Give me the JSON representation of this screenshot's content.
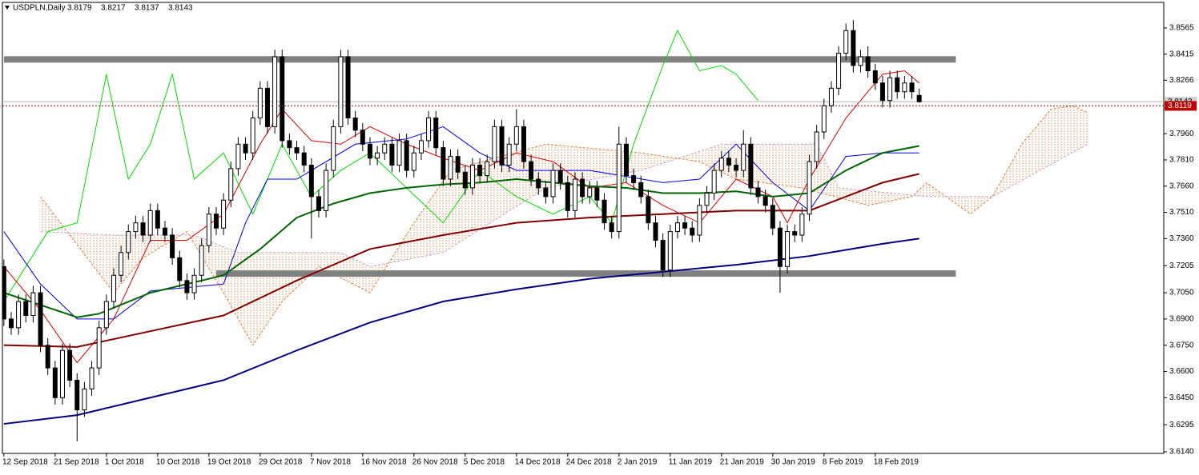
{
  "chart_data": {
    "type": "candlestick",
    "title": "USDPLN,Daily",
    "ylim": [
      3.6131,
      3.8711
    ],
    "xlim": [
      -0.2,
      158.4
    ],
    "yticks": [
      3.8565,
      3.8415,
      3.8266,
      {
        "value": 3.796,
        "label": "3.7960"
      },
      {
        "value": 3.781,
        "label": "3.7810"
      },
      {
        "value": 3.766,
        "label": "3.7660"
      },
      {
        "value": 3.751,
        "label": "3.7510"
      },
      {
        "value": 3.736,
        "label": "3.7360"
      },
      3.7205,
      {
        "value": 3.705,
        "label": "3.7050"
      },
      {
        "value": 3.69,
        "label": "3.6900"
      },
      {
        "value": 3.675,
        "label": "3.6750"
      },
      {
        "value": 3.66,
        "label": "3.6600"
      },
      {
        "value": 3.645,
        "label": "3.6450"
      },
      3.6295,
      {
        "value": 3.614,
        "label": "3.6140"
      }
    ],
    "xticks": [
      {
        "value": 0,
        "label": "12 Sep 2018"
      },
      {
        "value": 7,
        "label": "21 Sep 2018"
      },
      {
        "value": 14,
        "label": "1 Oct 2018"
      },
      {
        "value": 21,
        "label": "10 Oct 2018"
      },
      {
        "value": 28,
        "label": "19 Oct 2018"
      },
      {
        "value": 35,
        "label": "29 Oct 2018"
      },
      {
        "value": 42,
        "label": "7 Nov 2018"
      },
      {
        "value": 49,
        "label": "16 Nov 2018"
      },
      {
        "value": 56,
        "label": "26 Nov 2018"
      },
      {
        "value": 63,
        "label": "5 Dec 2018"
      },
      {
        "value": 70,
        "label": "14 Dec 2018"
      },
      {
        "value": 77,
        "label": "24 Dec 2018"
      },
      {
        "value": 84,
        "label": "2 Jan 2019"
      },
      {
        "value": 91,
        "label": "11 Jan 2019"
      },
      {
        "value": 98,
        "label": "21 Jan 2019"
      },
      {
        "value": 105,
        "label": "30 Jan 2019"
      },
      {
        "value": 112,
        "label": "8 Feb 2019"
      },
      {
        "value": 119,
        "label": "18 Feb 2019"
      }
    ],
    "ohlc": [
      [
        3.72,
        3.724,
        3.686,
        3.69
      ],
      [
        3.69,
        3.694,
        3.681,
        3.685
      ],
      [
        3.685,
        3.704,
        3.681,
        3.7
      ],
      [
        3.7,
        3.704,
        3.688,
        3.692
      ],
      [
        3.692,
        3.709,
        3.688,
        3.705
      ],
      [
        3.705,
        3.709,
        3.671,
        3.675
      ],
      [
        3.675,
        3.679,
        3.658,
        3.662
      ],
      [
        3.662,
        3.666,
        3.641,
        3.645
      ],
      [
        3.645,
        3.676,
        3.641,
        3.672
      ],
      [
        3.672,
        3.676,
        3.651,
        3.655
      ],
      [
        3.655,
        3.659,
        3.62,
        3.638
      ],
      [
        3.638,
        3.654,
        3.634,
        3.65
      ],
      [
        3.65,
        3.666,
        3.646,
        3.662
      ],
      [
        3.662,
        3.689,
        3.658,
        3.685
      ],
      [
        3.685,
        3.704,
        3.681,
        3.7
      ],
      [
        3.7,
        3.719,
        3.696,
        3.715
      ],
      [
        3.715,
        3.732,
        3.711,
        3.728
      ],
      [
        3.728,
        3.744,
        3.724,
        3.74
      ],
      [
        3.74,
        3.749,
        3.736,
        3.745
      ],
      [
        3.745,
        3.749,
        3.734,
        3.738
      ],
      [
        3.738,
        3.756,
        3.734,
        3.752
      ],
      [
        3.752,
        3.756,
        3.738,
        3.742
      ],
      [
        3.742,
        3.746,
        3.734,
        3.738
      ],
      [
        3.738,
        3.742,
        3.721,
        3.725
      ],
      [
        3.725,
        3.729,
        3.708,
        3.712
      ],
      [
        3.712,
        3.716,
        3.701,
        3.705
      ],
      [
        3.705,
        3.719,
        3.701,
        3.715
      ],
      [
        3.715,
        3.736,
        3.711,
        3.732
      ],
      [
        3.732,
        3.754,
        3.728,
        3.75
      ],
      [
        3.75,
        3.754,
        3.738,
        3.742
      ],
      [
        3.742,
        3.762,
        3.738,
        3.758
      ],
      [
        3.758,
        3.78,
        3.754,
        3.776
      ],
      [
        3.776,
        3.794,
        3.772,
        3.79
      ],
      [
        3.79,
        3.794,
        3.781,
        3.785
      ],
      [
        3.785,
        3.809,
        3.781,
        3.805
      ],
      [
        3.805,
        3.826,
        3.801,
        3.822
      ],
      [
        3.822,
        3.826,
        3.796,
        3.8
      ],
      [
        3.8,
        3.844,
        3.796,
        3.84
      ],
      [
        3.84,
        3.844,
        3.788,
        3.792
      ],
      [
        3.792,
        3.796,
        3.784,
        3.788
      ],
      [
        3.788,
        3.792,
        3.781,
        3.785
      ],
      [
        3.785,
        3.789,
        3.774,
        3.778
      ],
      [
        3.778,
        3.782,
        3.736,
        3.76
      ],
      [
        3.76,
        3.764,
        3.748,
        3.752
      ],
      [
        3.752,
        3.779,
        3.748,
        3.775
      ],
      [
        3.775,
        3.804,
        3.771,
        3.8
      ],
      [
        3.8,
        3.844,
        3.796,
        3.84
      ],
      [
        3.84,
        3.844,
        3.801,
        3.805
      ],
      [
        3.805,
        3.809,
        3.794,
        3.798
      ],
      [
        3.798,
        3.802,
        3.786,
        3.79
      ],
      [
        3.79,
        3.794,
        3.778,
        3.782
      ],
      [
        3.782,
        3.789,
        3.778,
        3.785
      ],
      [
        3.785,
        3.794,
        3.781,
        3.79
      ],
      [
        3.79,
        3.794,
        3.774,
        3.778
      ],
      [
        3.778,
        3.796,
        3.774,
        3.792
      ],
      [
        3.792,
        3.796,
        3.771,
        3.775
      ],
      [
        3.775,
        3.789,
        3.771,
        3.785
      ],
      [
        3.785,
        3.796,
        3.781,
        3.792
      ],
      [
        3.792,
        3.809,
        3.788,
        3.805
      ],
      [
        3.805,
        3.809,
        3.784,
        3.788
      ],
      [
        3.788,
        3.792,
        3.766,
        3.77
      ],
      [
        3.77,
        3.787,
        3.766,
        3.783
      ],
      [
        3.783,
        3.787,
        3.77,
        3.774
      ],
      [
        3.774,
        3.778,
        3.761,
        3.765
      ],
      [
        3.765,
        3.782,
        3.761,
        3.778
      ],
      [
        3.778,
        3.782,
        3.768,
        3.772
      ],
      [
        3.772,
        3.784,
        3.768,
        3.78
      ],
      [
        3.78,
        3.804,
        3.776,
        3.8
      ],
      [
        3.8,
        3.804,
        3.774,
        3.778
      ],
      [
        3.778,
        3.794,
        3.774,
        3.79
      ],
      [
        3.79,
        3.81,
        3.786,
        3.8
      ],
      [
        3.8,
        3.804,
        3.776,
        3.78
      ],
      [
        3.78,
        3.784,
        3.766,
        3.77
      ],
      [
        3.77,
        3.774,
        3.761,
        3.765
      ],
      [
        3.765,
        3.769,
        3.756,
        3.76
      ],
      [
        3.76,
        3.779,
        3.756,
        3.775
      ],
      [
        3.775,
        3.779,
        3.764,
        3.768
      ],
      [
        3.768,
        3.772,
        3.748,
        3.752
      ],
      [
        3.752,
        3.774,
        3.748,
        3.77
      ],
      [
        3.77,
        3.774,
        3.756,
        3.76
      ],
      [
        3.76,
        3.769,
        3.756,
        3.765
      ],
      [
        3.765,
        3.769,
        3.754,
        3.758
      ],
      [
        3.758,
        3.762,
        3.741,
        3.745
      ],
      [
        3.745,
        3.749,
        3.736,
        3.74
      ],
      [
        3.74,
        3.8,
        3.736,
        3.79
      ],
      [
        3.79,
        3.794,
        3.768,
        3.772
      ],
      [
        3.772,
        3.776,
        3.764,
        3.768
      ],
      [
        3.768,
        3.772,
        3.756,
        3.76
      ],
      [
        3.76,
        3.764,
        3.741,
        3.745
      ],
      [
        3.745,
        3.749,
        3.731,
        3.735
      ],
      [
        3.735,
        3.739,
        3.714,
        3.718
      ],
      [
        3.718,
        3.744,
        3.714,
        3.74
      ],
      [
        3.74,
        3.749,
        3.736,
        3.745
      ],
      [
        3.745,
        3.749,
        3.738,
        3.742
      ],
      [
        3.742,
        3.746,
        3.734,
        3.738
      ],
      [
        3.738,
        3.759,
        3.734,
        3.755
      ],
      [
        3.755,
        3.766,
        3.751,
        3.762
      ],
      [
        3.762,
        3.779,
        3.758,
        3.775
      ],
      [
        3.775,
        3.786,
        3.771,
        3.782
      ],
      [
        3.782,
        3.786,
        3.774,
        3.778
      ],
      [
        3.778,
        3.782,
        3.771,
        3.775
      ],
      [
        3.775,
        3.798,
        3.771,
        3.79
      ],
      [
        3.79,
        3.794,
        3.761,
        3.765
      ],
      [
        3.765,
        3.769,
        3.756,
        3.76
      ],
      [
        3.76,
        3.764,
        3.751,
        3.755
      ],
      [
        3.755,
        3.759,
        3.738,
        3.742
      ],
      [
        3.742,
        3.746,
        3.705,
        3.72
      ],
      [
        3.72,
        3.744,
        3.716,
        3.74
      ],
      [
        3.74,
        3.744,
        3.734,
        3.738
      ],
      [
        3.738,
        3.754,
        3.734,
        3.75
      ],
      [
        3.75,
        3.784,
        3.746,
        3.78
      ],
      [
        3.78,
        3.801,
        3.776,
        3.797
      ],
      [
        3.797,
        3.816,
        3.793,
        3.812
      ],
      [
        3.812,
        3.826,
        3.808,
        3.822
      ],
      [
        3.822,
        3.846,
        3.818,
        3.842
      ],
      [
        3.842,
        3.859,
        3.838,
        3.855
      ],
      [
        3.855,
        3.861,
        3.831,
        3.835
      ],
      [
        3.835,
        3.844,
        3.831,
        3.84
      ],
      [
        3.84,
        3.846,
        3.828,
        3.832
      ],
      [
        3.832,
        3.836,
        3.821,
        3.825
      ],
      [
        3.825,
        3.829,
        3.811,
        3.815
      ],
      [
        3.815,
        3.832,
        3.811,
        3.828
      ],
      [
        3.828,
        3.832,
        3.816,
        3.82
      ],
      [
        3.82,
        3.829,
        3.816,
        3.825
      ],
      [
        3.825,
        3.829,
        3.816,
        3.82
      ],
      [
        3.8179,
        3.8217,
        3.8137,
        3.8143
      ]
    ],
    "bid": 3.8143,
    "ask": 3.8119,
    "bands": [
      {
        "y": 3.8385,
        "x": [
          0,
          130
        ]
      },
      {
        "y": 3.716,
        "x": [
          29,
          130
        ]
      }
    ],
    "cloud": {
      "span_a": {
        "color": "#e08040",
        "x": [
          5,
          15,
          19,
          25,
          30,
          34,
          38,
          43,
          50,
          56,
          61,
          74,
          87,
          95,
          100,
          109,
          118,
          124,
          126,
          132,
          135,
          139,
          143,
          146,
          148
        ],
        "values": [
          3.76,
          3.705,
          3.725,
          3.74,
          3.705,
          3.675,
          3.7,
          3.72,
          3.705,
          3.745,
          3.775,
          3.79,
          3.785,
          3.78,
          3.77,
          3.765,
          3.755,
          3.76,
          3.768,
          3.75,
          3.76,
          3.79,
          3.81,
          3.812,
          3.808
        ]
      },
      "span_b": {
        "color": "#c8a2c8",
        "x": [
          5,
          15,
          26,
          32,
          46,
          50,
          60,
          74,
          87,
          98,
          111,
          114,
          126,
          135,
          148
        ],
        "values": [
          3.74,
          3.738,
          3.738,
          3.728,
          3.728,
          3.72,
          3.728,
          3.765,
          3.775,
          3.79,
          3.79,
          3.765,
          3.76,
          3.76,
          3.79
        ]
      }
    },
    "series": [
      {
        "color": "#00e000",
        "x": [
          0,
          3,
          6,
          10,
          14,
          17,
          20,
          23,
          26,
          30,
          34,
          38,
          42,
          46,
          50,
          55,
          60,
          65,
          70,
          75,
          80,
          83,
          86,
          90,
          92,
          95,
          98,
          100,
          103
        ],
        "values": [
          3.7,
          3.72,
          3.74,
          3.745,
          3.83,
          3.77,
          3.79,
          3.83,
          3.77,
          3.785,
          3.75,
          3.79,
          3.76,
          3.775,
          3.785,
          3.765,
          3.745,
          3.775,
          3.76,
          3.75,
          3.76,
          3.745,
          3.79,
          3.835,
          3.855,
          3.832,
          3.835,
          3.83,
          3.815
        ]
      },
      {
        "color": "#0000e0",
        "x": [
          0,
          5,
          10,
          15,
          20,
          30,
          33,
          36,
          40,
          48,
          55,
          60,
          65,
          70,
          80,
          90,
          95,
          100,
          105,
          110,
          115,
          120,
          125
        ],
        "values": [
          3.74,
          3.71,
          3.69,
          3.69,
          3.706,
          3.71,
          3.745,
          3.77,
          3.77,
          3.79,
          3.793,
          3.8,
          3.785,
          3.775,
          3.775,
          3.768,
          3.77,
          3.79,
          3.768,
          3.752,
          3.783,
          3.785,
          3.785
        ]
      },
      {
        "color": "#e00000",
        "x": [
          0,
          5,
          10,
          15,
          20,
          25,
          30,
          35,
          38,
          42,
          46,
          50,
          55,
          60,
          65,
          70,
          75,
          80,
          85,
          90,
          95,
          100,
          105,
          107,
          110,
          115,
          120,
          123,
          125
        ],
        "values": [
          3.72,
          3.695,
          3.665,
          3.69,
          3.735,
          3.735,
          3.75,
          3.79,
          3.81,
          3.792,
          3.79,
          3.8,
          3.79,
          3.782,
          3.775,
          3.785,
          3.78,
          3.765,
          3.768,
          3.755,
          3.745,
          3.77,
          3.76,
          3.745,
          3.77,
          3.805,
          3.83,
          3.832,
          3.825
        ]
      },
      {
        "color": "#000080",
        "width": 2,
        "x": [
          0,
          10,
          20,
          30,
          40,
          50,
          60,
          70,
          80,
          90,
          100,
          110,
          120,
          125
        ],
        "values": [
          3.63,
          3.635,
          3.645,
          3.655,
          3.672,
          3.688,
          3.7,
          3.707,
          3.713,
          3.717,
          3.721,
          3.726,
          3.733,
          3.736
        ]
      },
      {
        "color": "#800000",
        "width": 2,
        "x": [
          0,
          10,
          20,
          30,
          40,
          50,
          60,
          70,
          80,
          90,
          100,
          110,
          115,
          120,
          125
        ],
        "values": [
          3.675,
          3.674,
          3.683,
          3.692,
          3.712,
          3.73,
          3.738,
          3.745,
          3.748,
          3.75,
          3.752,
          3.752,
          3.76,
          3.768,
          3.773
        ]
      },
      {
        "color": "#006400",
        "width": 2,
        "x": [
          0,
          10,
          13,
          20,
          30,
          35,
          40,
          45,
          50,
          55,
          60,
          65,
          70,
          75,
          80,
          85,
          90,
          95,
          100,
          105,
          110,
          115,
          120,
          125
        ],
        "values": [
          3.705,
          3.691,
          3.693,
          3.705,
          3.715,
          3.73,
          3.748,
          3.756,
          3.762,
          3.765,
          3.767,
          3.768,
          3.77,
          3.768,
          3.766,
          3.765,
          3.762,
          3.762,
          3.763,
          3.76,
          3.762,
          3.775,
          3.785,
          3.789
        ]
      }
    ]
  }
}
